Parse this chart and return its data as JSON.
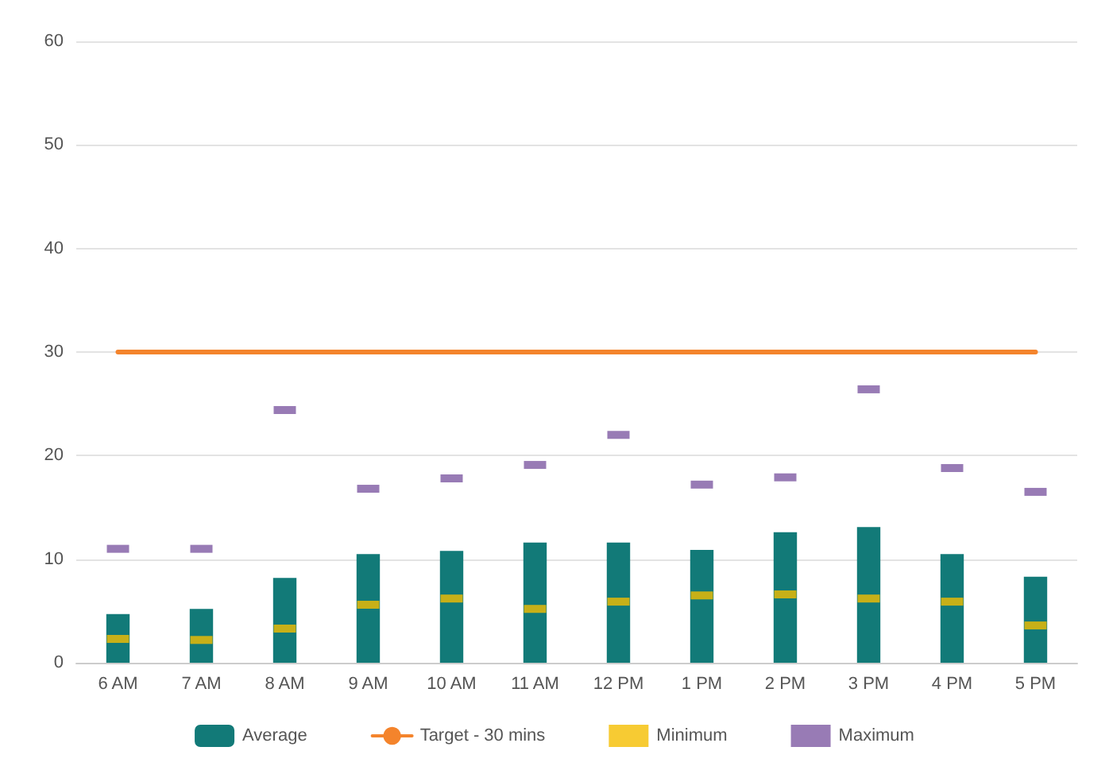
{
  "chart_data": {
    "type": "bar",
    "categories": [
      "6 AM",
      "7 AM",
      "8 AM",
      "9 AM",
      "10 AM",
      "11 AM",
      "12 PM",
      "1 PM",
      "2 PM",
      "3 PM",
      "4 PM",
      "5 PM"
    ],
    "series": [
      {
        "name": "Average",
        "color": "#127a78",
        "values": [
          4.7,
          5.2,
          8.2,
          10.5,
          10.8,
          11.6,
          11.6,
          10.9,
          12.6,
          13.1,
          10.5,
          8.3
        ]
      },
      {
        "name": "Target - 30 mins",
        "type": "line",
        "color": "#f4842c",
        "values": [
          30,
          30,
          30,
          30,
          30,
          30,
          30,
          30,
          30,
          30,
          30,
          30
        ]
      },
      {
        "name": "Minimum",
        "type": "scatter",
        "color": "#f5be00",
        "values": [
          2.3,
          2.2,
          3.3,
          5.6,
          6.2,
          5.2,
          5.9,
          6.5,
          6.6,
          6.2,
          5.9,
          3.6
        ]
      },
      {
        "name": "Maximum",
        "type": "scatter",
        "color": "#7e5aa2",
        "values": [
          11,
          11,
          24.4,
          16.8,
          17.8,
          19.1,
          22,
          17.2,
          17.9,
          26.4,
          18.8,
          16.5
        ]
      }
    ],
    "ylim": [
      0,
      60
    ],
    "yticks": [
      0,
      10,
      20,
      30,
      40,
      50,
      60
    ],
    "grid": "y",
    "legend": "bottom"
  }
}
